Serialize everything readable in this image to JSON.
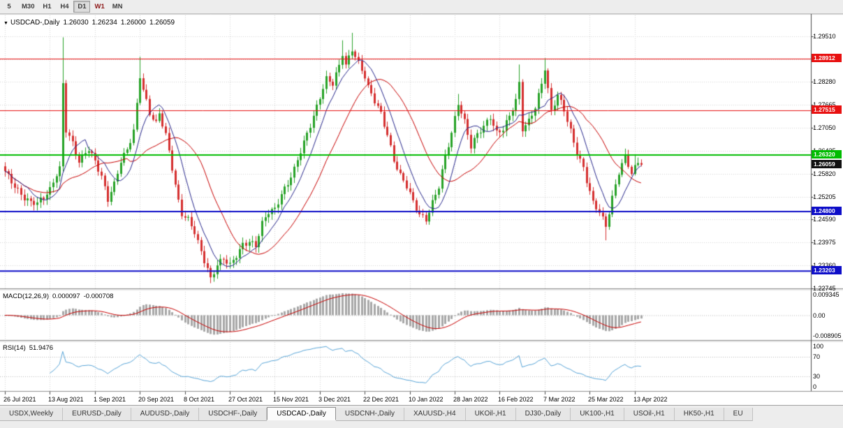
{
  "toolbar": {
    "periods": [
      {
        "label": "5",
        "active": false,
        "accent": false
      },
      {
        "label": "M30",
        "active": false,
        "accent": false
      },
      {
        "label": "H1",
        "active": false,
        "accent": false
      },
      {
        "label": "H4",
        "active": false,
        "accent": false
      },
      {
        "label": "D1",
        "active": true,
        "accent": false
      },
      {
        "label": "W1",
        "active": false,
        "accent": true
      },
      {
        "label": "MN",
        "active": false,
        "accent": false
      }
    ]
  },
  "icons": {
    "dropdown": "▼"
  },
  "colors": {
    "up": "#27a227",
    "down": "#d52f2f",
    "grid": "#d6d6d6",
    "chart_bg": "#ffffff",
    "chrome_bg": "#ededed",
    "axis_text": "#000000",
    "panel_border": "#8f8f8f"
  },
  "chart_data": {
    "type": "candlestick",
    "symbol": "USDCAD-,Daily",
    "ohlc_display": {
      "open": "1.26030",
      "high": "1.26234",
      "low": "1.26000",
      "close": "1.26059"
    },
    "price_scale": {
      "top": 1.3007,
      "bottom": 1.2274,
      "tick_step": 0.00615,
      "tick_min": 1.22745,
      "tick_max": 1.2951,
      "labels": [
        "1.29510",
        "1.28280",
        "1.27665",
        "1.27050",
        "1.26435",
        "1.25820",
        "1.25205",
        "1.24590",
        "1.23975",
        "1.23360",
        "1.22745"
      ]
    },
    "levels": [
      {
        "price": 1.28912,
        "label": "1.28912",
        "color": "#e81010",
        "width": 1
      },
      {
        "price": 1.27515,
        "label": "1.27515",
        "color": "#e81010",
        "width": 1
      },
      {
        "price": 1.2632,
        "label": "1.26320",
        "color": "#00bc00",
        "width": 2
      },
      {
        "price": 1.248,
        "label": "1.24800",
        "color": "#0d0dc8",
        "width": 2
      },
      {
        "price": 1.23203,
        "label": "1.23203",
        "color": "#0d0dc8",
        "width": 2
      }
    ],
    "current_price": {
      "price": 1.26059,
      "label": "1.26059",
      "color": "#101010"
    },
    "moving_averages": [
      {
        "name": "fast",
        "period": 8,
        "color": "#26268c"
      },
      {
        "name": "slow",
        "period": 21,
        "color": "#c80000"
      }
    ],
    "candles": {
      "count": 199,
      "anchors": [
        [
          0,
          1.2585
        ],
        [
          2,
          1.256
        ],
        [
          4,
          1.254
        ],
        [
          6,
          1.252
        ],
        [
          8,
          1.2505
        ],
        [
          10,
          1.25
        ],
        [
          12,
          1.2515
        ],
        [
          14,
          1.254
        ],
        [
          16,
          1.2585
        ],
        [
          17,
          1.26
        ],
        [
          18,
          1.2825
        ],
        [
          19,
          1.27
        ],
        [
          21,
          1.266
        ],
        [
          23,
          1.261
        ],
        [
          25,
          1.264
        ],
        [
          26,
          1.265
        ],
        [
          28,
          1.262
        ],
        [
          30,
          1.2575
        ],
        [
          32,
          1.251
        ],
        [
          34,
          1.255
        ],
        [
          36,
          1.2615
        ],
        [
          38,
          1.265
        ],
        [
          40,
          1.27
        ],
        [
          41,
          1.277
        ],
        [
          42,
          1.2845
        ],
        [
          43,
          1.2805
        ],
        [
          45,
          1.274
        ],
        [
          47,
          1.2715
        ],
        [
          48,
          1.2745
        ],
        [
          50,
          1.269
        ],
        [
          52,
          1.26
        ],
        [
          54,
          1.2505
        ],
        [
          55,
          1.247
        ],
        [
          57,
          1.2455
        ],
        [
          59,
          1.2425
        ],
        [
          61,
          1.2375
        ],
        [
          63,
          1.233
        ],
        [
          64,
          1.23
        ],
        [
          66,
          1.2335
        ],
        [
          68,
          1.235
        ],
        [
          70,
          1.2335
        ],
        [
          72,
          1.2365
        ],
        [
          74,
          1.2395
        ],
        [
          76,
          1.24
        ],
        [
          78,
          1.2385
        ],
        [
          80,
          1.2445
        ],
        [
          82,
          1.248
        ],
        [
          84,
          1.249
        ],
        [
          86,
          1.253
        ],
        [
          88,
          1.2555
        ],
        [
          90,
          1.259
        ],
        [
          92,
          1.264
        ],
        [
          94,
          1.269
        ],
        [
          96,
          1.274
        ],
        [
          98,
          1.279
        ],
        [
          100,
          1.2835
        ],
        [
          102,
          1.282
        ],
        [
          104,
          1.287
        ],
        [
          105,
          1.2905
        ],
        [
          106,
          1.2875
        ],
        [
          108,
          1.292
        ],
        [
          110,
          1.288
        ],
        [
          112,
          1.284
        ],
        [
          113,
          1.281
        ],
        [
          115,
          1.2775
        ],
        [
          117,
          1.2745
        ],
        [
          119,
          1.269
        ],
        [
          121,
          1.262
        ],
        [
          123,
          1.2575
        ],
        [
          125,
          1.2545
        ],
        [
          127,
          1.2505
        ],
        [
          129,
          1.2475
        ],
        [
          131,
          1.2462
        ],
        [
          133,
          1.2505
        ],
        [
          135,
          1.2545
        ],
        [
          137,
          1.2625
        ],
        [
          139,
          1.269
        ],
        [
          141,
          1.2775
        ],
        [
          143,
          1.2725
        ],
        [
          145,
          1.2655
        ],
        [
          147,
          1.2685
        ],
        [
          149,
          1.2705
        ],
        [
          151,
          1.2735
        ],
        [
          153,
          1.2695
        ],
        [
          155,
          1.2705
        ],
        [
          157,
          1.2735
        ],
        [
          159,
          1.2775
        ],
        [
          160,
          1.282
        ],
        [
          161,
          1.27
        ],
        [
          163,
          1.2725
        ],
        [
          165,
          1.2765
        ],
        [
          167,
          1.2825
        ],
        [
          168,
          1.2865
        ],
        [
          170,
          1.2745
        ],
        [
          172,
          1.279
        ],
        [
          174,
          1.2755
        ],
        [
          176,
          1.27
        ],
        [
          178,
          1.264
        ],
        [
          180,
          1.2595
        ],
        [
          181,
          1.256
        ],
        [
          183,
          1.25
        ],
        [
          185,
          1.248
        ],
        [
          187,
          1.2445
        ],
        [
          189,
          1.252
        ],
        [
          191,
          1.2585
        ],
        [
          193,
          1.2625
        ],
        [
          195,
          1.258
        ],
        [
          197,
          1.2615
        ],
        [
          198,
          1.26059
        ]
      ],
      "spike_highs": {
        "18": 1.2948,
        "42": 1.2896,
        "105": 1.294,
        "108": 1.296,
        "141": 1.2796,
        "160": 1.2875,
        "168": 1.2892,
        "196": 1.2634
      },
      "spike_lows": {
        "32": 1.2493,
        "64": 1.2288,
        "131": 1.245,
        "187": 1.2403
      }
    },
    "macd": {
      "label": "MACD(12,26,9)",
      "main_value": "0.000097",
      "signal_value": "-0.000708",
      "fast": 12,
      "slow": 26,
      "signal": 9,
      "axis_labels": {
        "top": "0.009345",
        "zero": "0.00",
        "bottom": "-0.008905"
      },
      "hist_color": "#a8a8a8",
      "signal_color": "#c80000"
    },
    "rsi": {
      "label": "RSI(14)",
      "value": "51.9476",
      "period": 14,
      "axis_values": [
        100,
        70,
        30,
        0
      ],
      "guide_levels": [
        70,
        30
      ],
      "line_color": "#58a5d8"
    },
    "time_axis": [
      {
        "i": 0,
        "label": "26 Jul 2021"
      },
      {
        "i": 14,
        "label": "13 Aug 2021"
      },
      {
        "i": 28,
        "label": "1 Sep 2021"
      },
      {
        "i": 42,
        "label": "20 Sep 2021"
      },
      {
        "i": 56,
        "label": "8 Oct 2021"
      },
      {
        "i": 70,
        "label": "27 Oct 2021"
      },
      {
        "i": 84,
        "label": "15 Nov 2021"
      },
      {
        "i": 98,
        "label": "3 Dec 2021"
      },
      {
        "i": 112,
        "label": "22 Dec 2021"
      },
      {
        "i": 126,
        "label": "10 Jan 2022"
      },
      {
        "i": 140,
        "label": "28 Jan 2022"
      },
      {
        "i": 154,
        "label": "16 Feb 2022"
      },
      {
        "i": 168,
        "label": "7 Mar 2022"
      },
      {
        "i": 182,
        "label": "25 Mar 2022"
      },
      {
        "i": 196,
        "label": "13 Apr 2022"
      }
    ]
  },
  "tabs": {
    "items": [
      {
        "label": "USDX,Weekly",
        "active": false
      },
      {
        "label": "EURUSD-,Daily",
        "active": false
      },
      {
        "label": "AUDUSD-,Daily",
        "active": false
      },
      {
        "label": "USDCHF-,Daily",
        "active": false
      },
      {
        "label": "USDCAD-,Daily",
        "active": true
      },
      {
        "label": "USDCNH-,Daily",
        "active": false
      },
      {
        "label": "XAUUSD-,H4",
        "active": false
      },
      {
        "label": "UKOil-,H1",
        "active": false
      },
      {
        "label": "DJ30-,Daily",
        "active": false
      },
      {
        "label": "UK100-,H1",
        "active": false
      },
      {
        "label": "USOil-,H1",
        "active": false
      },
      {
        "label": "HK50-,H1",
        "active": false
      },
      {
        "label": "EU",
        "active": false
      }
    ]
  }
}
